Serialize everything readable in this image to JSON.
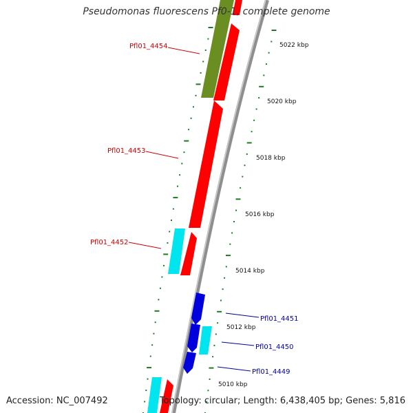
{
  "title": "Pseudomonas fluorescens Pf0-1, complete genome",
  "accession": "Accession: NC_007492",
  "topology": "Topology: circular; Length: 6,438,405 bp; Genes: 5,816",
  "colors": {
    "backbone": "#8f8f8f",
    "tick": "#1f7a1f",
    "cds_red": "#ff0000",
    "cds_olive": "#6b8e23",
    "cds_cyan": "#00e5ee",
    "cds_blue": "#0000dd",
    "label_red": "#cc0000",
    "label_blue": "#000099"
  },
  "scale_ticks": [
    {
      "label": "5022 kbp"
    },
    {
      "label": "5020 kbp"
    },
    {
      "label": "5018 kbp"
    },
    {
      "label": "5016 kbp"
    },
    {
      "label": "5014 kbp"
    },
    {
      "label": "5012 kbp"
    },
    {
      "label": "5010 kbp"
    }
  ],
  "gene_labels": [
    {
      "text": "Pfl01_4454",
      "color": "label_red"
    },
    {
      "text": "Pfl01_4453",
      "color": "label_red"
    },
    {
      "text": "Pfl01_4452",
      "color": "label_red"
    },
    {
      "text": "Pfl01_4451",
      "color": "label_blue"
    },
    {
      "text": "Pfl01_4450",
      "color": "label_blue"
    },
    {
      "text": "Pfl01_4449",
      "color": "label_blue"
    }
  ]
}
